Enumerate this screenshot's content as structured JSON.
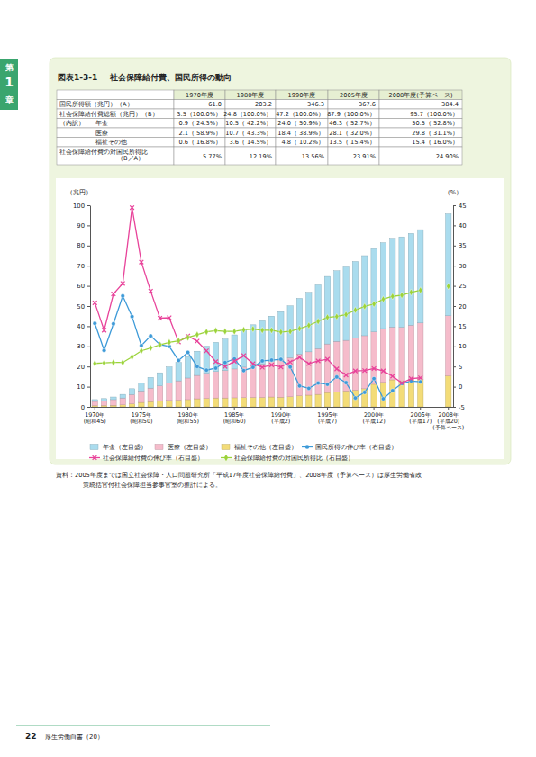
{
  "page": {
    "chapter_tab": [
      "第",
      "1",
      "章"
    ],
    "header": {
      "label": "図表1-3-1",
      "title": "社会保障給付費、国民所得の動向"
    },
    "source": [
      "資料：2005年度までは国立社会保障・人口問題研究所「平成17年度社会保障給付費」、2008年度（予算ベース）は厚生労働省政",
      "策統括官付社会保障担当参事官室の推計による。"
    ],
    "footer": {
      "page_number": "22",
      "publication": "厚生労働白書（20）"
    }
  },
  "table": {
    "columns": [
      "1970年度",
      "1980年度",
      "1990年度",
      "2005年度",
      "2008年度(予算ベース)"
    ],
    "rows": [
      {
        "label": "国民所得額（兆円）（A）",
        "cells": [
          "61.0",
          "203.2",
          "346.3",
          "367.6",
          "384.4"
        ]
      },
      {
        "label": "社会保障給付費総額（兆円）（B）",
        "cells": [
          "3.5（100.0%）",
          "24.8（100.0%）",
          "47.2（100.0%）",
          "87.9（100.0%）",
          "95.7（100.0%）"
        ]
      },
      {
        "group": "（内訳）",
        "rows": [
          {
            "label": "年金",
            "cells": [
              "0.9（ 24.3%）",
              "10.5（ 42.2%）",
              "24.0（ 50.9%）",
              "46.3（ 52.7%）",
              "50.5（ 52.8%）"
            ]
          },
          {
            "label": "医療",
            "cells": [
              "2.1（ 58.9%）",
              "10.7（ 43.3%）",
              "18.4（ 38.9%）",
              "28.1（ 32.0%）",
              "29.8（ 31.1%）"
            ]
          },
          {
            "label": "福祉その他",
            "cells": [
              "0.6（ 16.8%）",
              "3.6（ 14.5%）",
              "4.8（ 10.2%）",
              "13.5（ 15.4%）",
              "15.4（ 16.0%）"
            ]
          }
        ]
      },
      {
        "label": "社会保障給付費の対国民所得比\n（B／A）",
        "cells": [
          "5.77%",
          "12.19%",
          "13.56%",
          "23.91%",
          "24.90%"
        ]
      }
    ]
  },
  "chart_data": {
    "type": "bar",
    "stacked": true,
    "grid": false,
    "ylabel": "（兆円）",
    "y2label": "（%）",
    "categories": [
      "1970年\n(昭和45)",
      null,
      null,
      null,
      null,
      "1975年\n(昭和50)",
      null,
      null,
      null,
      null,
      "1980年\n(昭和55)",
      null,
      null,
      null,
      null,
      "1985年\n(昭和60)",
      null,
      null,
      null,
      null,
      "1990年\n(平成2)",
      null,
      null,
      null,
      null,
      "1995年\n(平成7)",
      null,
      null,
      null,
      null,
      "2000年\n(平成12)",
      null,
      null,
      null,
      null,
      "2005年\n(平成17)",
      null,
      null,
      "2008年\n(平成20)\n(予算ベース)"
    ],
    "ylim": [
      0,
      100
    ],
    "yticks": [
      0,
      10,
      20,
      30,
      40,
      50,
      60,
      70,
      80,
      90,
      100
    ],
    "y2lim": [
      -5,
      45
    ],
    "y2ticks": [
      -5,
      0,
      5,
      10,
      15,
      20,
      25,
      30,
      35,
      40,
      45
    ],
    "legend": "bottom",
    "series": [
      {
        "name": "年金（左目盛）",
        "type": "bar",
        "color": "#aadcee",
        "values": [
          0.9,
          1.1,
          1.3,
          1.8,
          2.9,
          3.9,
          5.3,
          6.5,
          7.9,
          9.1,
          10.5,
          12.0,
          13.4,
          14.5,
          15.6,
          16.9,
          18.8,
          20.1,
          21.4,
          22.6,
          24.0,
          25.7,
          27.6,
          29.5,
          31.6,
          33.5,
          35.0,
          36.4,
          38.0,
          39.7,
          41.2,
          42.6,
          44.0,
          44.8,
          45.5,
          46.3,
          null,
          null,
          50.5
        ]
      },
      {
        "name": "医療（左目盛）",
        "type": "bar",
        "color": "#f5bccb",
        "values": [
          2.1,
          2.3,
          2.8,
          3.4,
          4.6,
          5.7,
          6.7,
          7.5,
          8.7,
          9.5,
          10.7,
          11.6,
          12.5,
          13.1,
          13.6,
          14.3,
          15.1,
          15.9,
          16.6,
          17.5,
          18.4,
          19.4,
          20.7,
          21.5,
          22.7,
          24.1,
          25.2,
          25.1,
          25.8,
          26.3,
          26.0,
          26.6,
          26.2,
          26.6,
          27.1,
          28.1,
          null,
          null,
          29.8
        ]
      },
      {
        "name": "福祉その他（左目盛）",
        "type": "bar",
        "color": "#f3dc78",
        "values": [
          0.6,
          0.7,
          0.8,
          1.0,
          1.5,
          2.2,
          2.6,
          2.9,
          3.2,
          3.4,
          3.6,
          4.0,
          4.2,
          4.4,
          4.4,
          4.5,
          4.6,
          4.7,
          4.7,
          4.9,
          4.8,
          5.0,
          5.5,
          5.8,
          6.2,
          7.1,
          7.3,
          7.9,
          8.3,
          9.0,
          11.2,
          12.2,
          13.4,
          12.9,
          13.4,
          13.5,
          null,
          null,
          15.4
        ]
      },
      {
        "name": "国民所得の伸び率（右目盛）",
        "type": "line",
        "axis": "y2",
        "color": "#3d9ad8",
        "marker": "circle",
        "line_style": "solid",
        "values": [
          15.7,
          9.0,
          15.6,
          22.5,
          17.4,
          10.2,
          12.6,
          10.4,
          10.0,
          6.5,
          8.5,
          5.0,
          4.1,
          4.6,
          6.0,
          6.9,
          4.0,
          4.8,
          6.4,
          6.6,
          6.8,
          4.9,
          0.2,
          -0.4,
          0.9,
          0.6,
          2.4,
          1.0,
          -2.8,
          -1.4,
          2.0,
          -3.0,
          -1.0,
          0.8,
          1.4,
          1.2,
          null,
          null,
          null
        ]
      },
      {
        "name": "社会保障給付費の伸び率（右目盛）",
        "type": "line",
        "axis": "y2",
        "color": "#e8439a",
        "marker": "x",
        "line_style": "solid",
        "values": [
          20.8,
          14.0,
          23.0,
          25.6,
          44.4,
          30.9,
          23.7,
          17.0,
          17.1,
          11.1,
          12.6,
          11.3,
          8.9,
          6.2,
          5.0,
          6.3,
          7.7,
          5.7,
          4.8,
          5.4,
          4.9,
          6.1,
          7.3,
          5.7,
          6.4,
          6.8,
          4.4,
          2.9,
          3.9,
          4.0,
          4.5,
          3.9,
          2.6,
          0.9,
          2.0,
          2.2,
          null,
          null,
          null
        ]
      },
      {
        "name": "社会保障給付費の対国民所得比（右目盛）",
        "type": "line",
        "axis": "y2",
        "color": "#9bd33a",
        "marker": "diamond",
        "line_style": "solid",
        "values": [
          5.77,
          5.9,
          6.0,
          6.0,
          7.4,
          8.9,
          9.6,
          10.4,
          11.0,
          11.4,
          12.19,
          12.9,
          13.6,
          13.9,
          13.7,
          13.7,
          14.1,
          14.3,
          14.0,
          14.0,
          13.56,
          13.7,
          14.4,
          15.2,
          16.2,
          17.2,
          17.4,
          17.9,
          19.0,
          19.9,
          20.5,
          21.7,
          22.4,
          22.7,
          23.4,
          23.91,
          null,
          null,
          24.9
        ]
      }
    ]
  }
}
